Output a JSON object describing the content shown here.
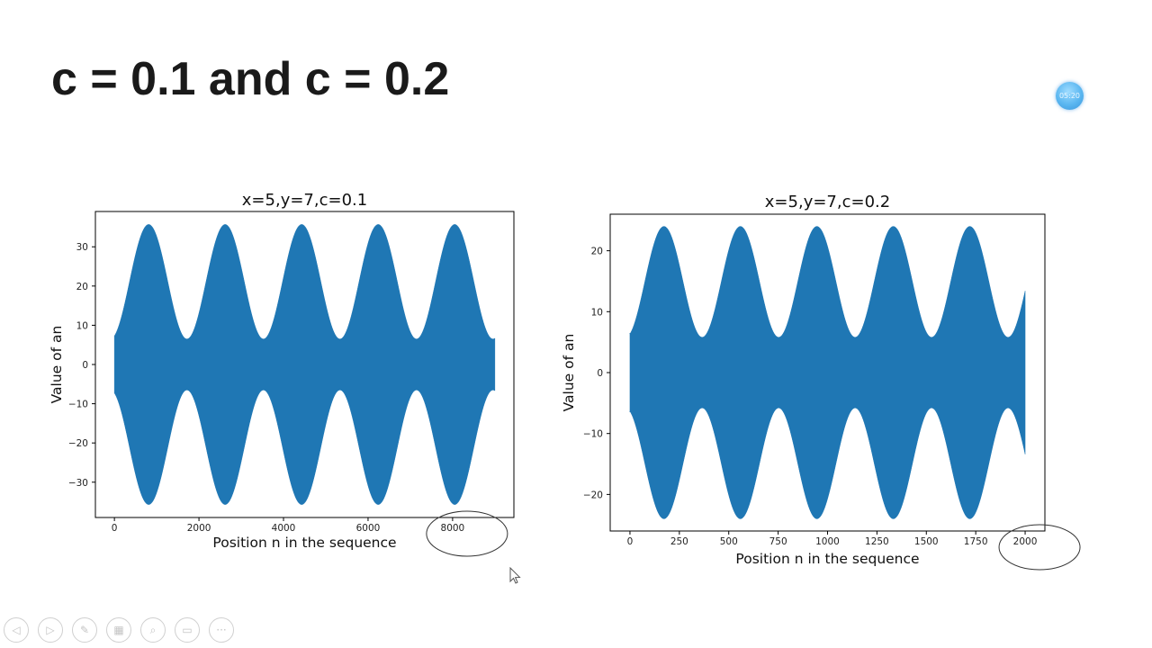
{
  "slide": {
    "title": "c = 0.1 and c = 0.2",
    "timer": "05:20"
  },
  "colors": {
    "fill": "#1f77b4",
    "annotation": "#333333"
  },
  "chart_data": [
    {
      "type": "area",
      "title": "x=5,y=7,c=0.1",
      "xlabel": "Position n in the sequence",
      "ylabel": "Value of an",
      "xlim": [
        -450,
        9450
      ],
      "ylim": [
        -39,
        39
      ],
      "xticks": [
        0,
        2000,
        4000,
        6000,
        8000
      ],
      "yticks": [
        -30,
        -20,
        -10,
        0,
        10,
        20,
        30
      ],
      "x_end": 9000,
      "envelope": {
        "center": 21.1,
        "amplitude": 14.6,
        "period": 1810,
        "first_peak": 810,
        "start_value": 7
      },
      "highlighted_tick": 8000,
      "grid": false
    },
    {
      "type": "area",
      "title": "x=5,y=7,c=0.2",
      "xlabel": "Position n in the sequence",
      "ylabel": "Value of an",
      "xlim": [
        -100,
        2100
      ],
      "ylim": [
        -26,
        26
      ],
      "xticks": [
        0,
        250,
        500,
        750,
        1000,
        1250,
        1500,
        1750,
        2000
      ],
      "yticks": [
        -20,
        -10,
        0,
        10,
        20
      ],
      "x_end": 2000,
      "envelope": {
        "center": 14.9,
        "amplitude": 9.1,
        "period": 387,
        "first_peak": 172,
        "start_value": 6.5
      },
      "highlighted_tick": 2000,
      "grid": false
    }
  ],
  "controls": [
    {
      "name": "prev-icon",
      "glyph": "◁"
    },
    {
      "name": "next-icon",
      "glyph": "▷"
    },
    {
      "name": "pen-icon",
      "glyph": "✎"
    },
    {
      "name": "slides-grid-icon",
      "glyph": "▦"
    },
    {
      "name": "zoom-icon",
      "glyph": "⌕"
    },
    {
      "name": "subtitles-icon",
      "glyph": "▭"
    },
    {
      "name": "more-options-icon",
      "glyph": "···"
    }
  ]
}
